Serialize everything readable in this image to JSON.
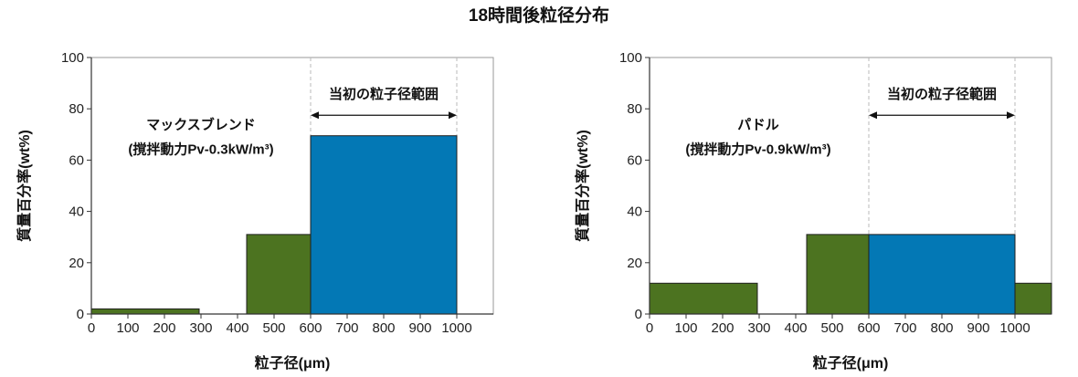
{
  "title": "18時間後粒径分布",
  "colors": {
    "green": "#4c7320",
    "blue": "#0378b5"
  },
  "chart_data": [
    {
      "type": "bar",
      "xlabel": "粒子径(μm)",
      "ylabel": "質量百分率(wt%)",
      "xlim": [
        0,
        1100
      ],
      "ylim": [
        0,
        100
      ],
      "xticks": [
        0,
        100,
        200,
        300,
        400,
        500,
        600,
        700,
        800,
        900,
        1000
      ],
      "yticks": [
        0,
        20,
        40,
        60,
        80,
        100
      ],
      "grid": false,
      "bins": [
        {
          "x0": 0,
          "x1": 295,
          "value": 2,
          "color": "green"
        },
        {
          "x0": 425,
          "x1": 600,
          "value": 31,
          "color": "green"
        },
        {
          "x0": 600,
          "x1": 1000,
          "value": 69.5,
          "color": "blue"
        }
      ],
      "range_label": "当初の粒子径範囲",
      "range": [
        600,
        1000
      ],
      "annotation": [
        "マックスブレンド",
        "(撹拌動力Pv-0.3kW/m³)"
      ]
    },
    {
      "type": "bar",
      "xlabel": "粒子径(μm)",
      "ylabel": "質量百分率(wt%)",
      "xlim": [
        0,
        1100
      ],
      "ylim": [
        0,
        100
      ],
      "xticks": [
        0,
        100,
        200,
        300,
        400,
        500,
        600,
        700,
        800,
        900,
        1000
      ],
      "yticks": [
        0,
        20,
        40,
        60,
        80,
        100
      ],
      "grid": false,
      "bins": [
        {
          "x0": 0,
          "x1": 295,
          "value": 12,
          "color": "green"
        },
        {
          "x0": 430,
          "x1": 600,
          "value": 31,
          "color": "green"
        },
        {
          "x0": 600,
          "x1": 1000,
          "value": 31,
          "color": "blue"
        },
        {
          "x0": 1000,
          "x1": 1100,
          "value": 12,
          "color": "green"
        }
      ],
      "range_label": "当初の粒子径範囲",
      "range": [
        600,
        1000
      ],
      "annotation": [
        "パドル",
        "(撹拌動力Pv-0.9kW/m³)"
      ]
    }
  ]
}
